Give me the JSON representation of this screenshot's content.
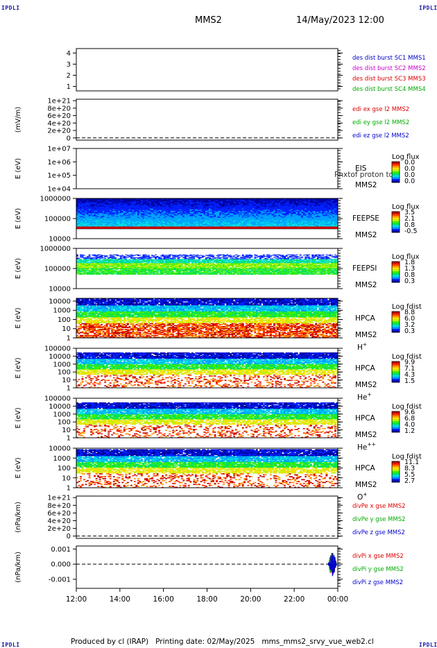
{
  "corner_label": "IPDLI",
  "header": {
    "spacecraft": "MMS2",
    "datetime": "14/May/2023 12:00"
  },
  "footer": {
    "producer": "Produced by cl (IRAP)",
    "printing_date": "Printing date: 02/May/2025",
    "script_name": "mms_mms2_srvy_vue_web2.cl"
  },
  "chart_data": [
    {
      "id": "panel-burst",
      "type": "line",
      "yticks": [
        "1",
        "2",
        "3",
        "4"
      ],
      "ylim": [
        0.6,
        4.4
      ],
      "ylabel": "",
      "series": [
        {
          "name": "des dist burst SC1 MMS1",
          "color": "#0000cc",
          "values": []
        },
        {
          "name": "des dist burst SC2 MMS2",
          "color": "#cc00cc",
          "values": []
        },
        {
          "name": "des dist burst SC3 MMS3",
          "color": "#dd0000",
          "values": []
        },
        {
          "name": "des dist burst SC4 MMS4",
          "color": "#00aa00",
          "values": []
        }
      ]
    },
    {
      "id": "panel-edi",
      "type": "line",
      "yticks": [
        "0",
        "2e+20",
        "4e+20",
        "6e+20",
        "8e+20",
        "1e+21"
      ],
      "ylim": [
        -6e+19,
        1.04e+21
      ],
      "ylabel": "(mV/m)",
      "zero_line": true,
      "series": [
        {
          "name": "edi ex gse l2 MMS2",
          "color": "#dd0000",
          "values": []
        },
        {
          "name": "edi ey gse l2 MMS2",
          "color": "#00aa00",
          "values": []
        },
        {
          "name": "edi ez gse l2 MMS2",
          "color": "#0000cc",
          "values": []
        }
      ]
    },
    {
      "id": "panel-eis",
      "type": "heatmap",
      "log_y": true,
      "yticks": [
        "1e+04",
        "1e+05",
        "1e+06",
        "1e+07"
      ],
      "ylim": [
        10000,
        10000000
      ],
      "ylabel": "E (eV)",
      "instrument": "EIS",
      "spacecraft": "MMS2",
      "species": "",
      "overlay_text": "Phxtof proton to",
      "cbar_title": "Log flux",
      "cbar_ticks": [
        "0.0",
        "0.0",
        "0.0",
        "0.0"
      ],
      "fill": {
        "min_e": 0,
        "max_e": 0,
        "density": 0
      }
    },
    {
      "id": "panel-feepse",
      "type": "heatmap",
      "log_y": true,
      "yticks": [
        "10000",
        "100000",
        "1000000"
      ],
      "ylim": [
        10000,
        1000000
      ],
      "ylabel": "E (eV)",
      "instrument": "FEEPSE",
      "spacecraft": "MMS2",
      "species": "",
      "cbar_title": "Log flux",
      "cbar_ticks": [
        "3.5",
        "2.1",
        "0.8",
        "-0.5"
      ],
      "fill": {
        "min_e": 30000,
        "max_e": 1000000,
        "density": 1.0,
        "profile": "electron",
        "red_band": [
          30000,
          40000
        ]
      }
    },
    {
      "id": "panel-feepsi",
      "type": "heatmap",
      "log_y": true,
      "yticks": [
        "10000",
        "100000",
        "1000000"
      ],
      "ylim": [
        10000,
        1000000
      ],
      "ylabel": "E (eV)",
      "instrument": "FEEPSI",
      "spacecraft": "MMS2",
      "species": "",
      "cbar_title": "Log flux",
      "cbar_ticks": [
        "1.8",
        "1.3",
        "0.8",
        "0.3"
      ],
      "fill": {
        "min_e": 50000,
        "max_e": 500000,
        "density": 0.85,
        "profile": "ion"
      }
    },
    {
      "id": "panel-hpca-h",
      "type": "heatmap",
      "log_y": true,
      "yticks": [
        "1",
        "10",
        "100",
        "1000",
        "10000"
      ],
      "ylim": [
        1,
        20000
      ],
      "ylabel": "E (eV)",
      "instrument": "HPCA",
      "spacecraft": "MMS2",
      "species": "H",
      "species_sup": "+",
      "cbar_title": "Log fdist",
      "cbar_ticks": [
        "8.8",
        "6.0",
        "3.2",
        "0.3"
      ],
      "fill": {
        "min_e": 1,
        "max_e": 20000,
        "density": 0.95,
        "profile": "hpca-h"
      }
    },
    {
      "id": "panel-hpca-he",
      "type": "heatmap",
      "log_y": true,
      "yticks": [
        "1",
        "10",
        "100",
        "1000",
        "10000",
        "100000"
      ],
      "ylim": [
        1,
        100000
      ],
      "ylabel": "E (eV)",
      "instrument": "HPCA",
      "spacecraft": "MMS2",
      "species": "He",
      "species_sup": "+",
      "cbar_title": "Log fdist",
      "cbar_ticks": [
        "9.9",
        "7.1",
        "4.3",
        "1.5"
      ],
      "fill": {
        "min_e": 1,
        "max_e": 30000,
        "density": 0.9,
        "profile": "hpca-he"
      }
    },
    {
      "id": "panel-hpca-hepp",
      "type": "heatmap",
      "log_y": true,
      "yticks": [
        "1",
        "10",
        "100",
        "1000",
        "10000",
        "100000"
      ],
      "ylim": [
        1,
        100000
      ],
      "ylabel": "E (eV)",
      "instrument": "HPCA",
      "spacecraft": "MMS2",
      "species": "He",
      "species_sup": "++",
      "cbar_title": "Log fdist",
      "cbar_ticks": [
        "9.6",
        "6.8",
        "4.0",
        "1.2"
      ],
      "fill": {
        "min_e": 1,
        "max_e": 30000,
        "density": 0.9,
        "profile": "hpca-hepp"
      }
    },
    {
      "id": "panel-hpca-o",
      "type": "heatmap",
      "log_y": true,
      "yticks": [
        "1",
        "10",
        "100",
        "1000",
        "10000"
      ],
      "ylim": [
        1,
        10000
      ],
      "ylabel": "E (eV)",
      "instrument": "HPCA",
      "spacecraft": "MMS2",
      "species": "O",
      "species_sup": "+",
      "cbar_title": "Log fdist",
      "cbar_ticks": [
        "11.1",
        "8.3",
        "5.5",
        "2.7"
      ],
      "fill": {
        "min_e": 1,
        "max_e": 8000,
        "density": 0.9,
        "profile": "hpca-o"
      }
    },
    {
      "id": "panel-divpe",
      "type": "line",
      "yticks": [
        "0",
        "2e+20",
        "4e+20",
        "6e+20",
        "8e+20",
        "1e+21"
      ],
      "ylim": [
        -6e+19,
        1.04e+21
      ],
      "ylabel": "(nPa/km)",
      "zero_line": true,
      "series": [
        {
          "name": "divPe x gse MMS2",
          "color": "#dd0000",
          "values": []
        },
        {
          "name": "divPe y gse MMS2",
          "color": "#00aa00",
          "values": []
        },
        {
          "name": "divPe z gse MMS2",
          "color": "#0000cc",
          "values": []
        }
      ]
    },
    {
      "id": "panel-divpi",
      "type": "line",
      "yticks": [
        "-0.001",
        "0.000",
        "0.001"
      ],
      "ylim": [
        -0.0016,
        0.0012
      ],
      "ylabel": "(nPa/km)",
      "zero_line": true,
      "series": [
        {
          "name": "divPi x gse MMS2",
          "color": "#dd0000",
          "values": []
        },
        {
          "name": "divPi y gse MMS2",
          "color": "#00aa00",
          "values": []
        },
        {
          "name": "divPi z gse MMS2",
          "color": "#0000cc",
          "values": []
        }
      ],
      "burst_near_end": {
        "start_hour": 23.55,
        "end_hour": 23.95,
        "amplitude": 0.0008
      }
    }
  ],
  "x_axis": {
    "ticks": [
      "12:00",
      "14:00",
      "16:00",
      "18:00",
      "20:00",
      "22:00",
      "00:00"
    ],
    "hours": [
      12,
      14,
      16,
      18,
      20,
      22,
      24
    ]
  },
  "colormap": [
    "#0000a0",
    "#0020ff",
    "#00a0ff",
    "#00e0e0",
    "#00e060",
    "#40f000",
    "#c0f000",
    "#ffe000",
    "#ff9000",
    "#ff3000",
    "#c00000"
  ]
}
